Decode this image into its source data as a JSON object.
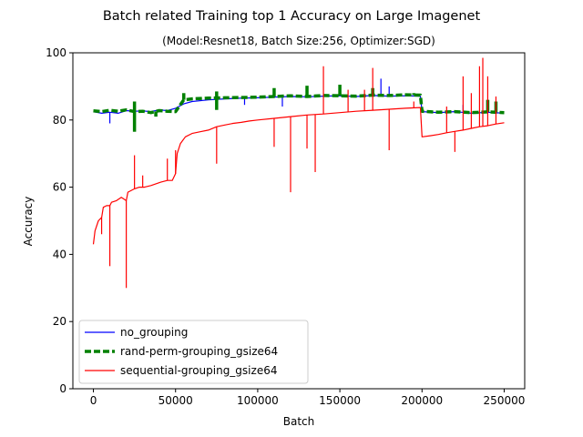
{
  "chart_data": {
    "type": "line",
    "title": "Batch related Training top 1 Accuracy on Large Imagenet",
    "subtitle": "(Model:Resnet18, Batch Size:256, Optimizer:SGD)",
    "xlabel": "Batch",
    "ylabel": "Accuracy",
    "xlim": [
      -12500,
      262500
    ],
    "ylim": [
      0,
      100
    ],
    "xticks": [
      0,
      50000,
      100000,
      150000,
      200000,
      250000
    ],
    "xtick_labels": [
      "0",
      "50000",
      "100000",
      "150000",
      "200000",
      "250000"
    ],
    "yticks": [
      0,
      20,
      40,
      60,
      80,
      100
    ],
    "ytick_labels": [
      "0",
      "20",
      "40",
      "60",
      "80",
      "100"
    ],
    "grid": false,
    "legend_position": "lower-left",
    "series": [
      {
        "name": "no_grouping",
        "color": "#0000ff",
        "style": "solid-thin",
        "x": [
          0,
          5000,
          10000,
          15000,
          20000,
          25000,
          30000,
          35000,
          40000,
          45000,
          50000,
          55000,
          60000,
          70000,
          80000,
          90000,
          100000,
          110000,
          120000,
          130000,
          140000,
          150000,
          160000,
          170000,
          180000,
          190000,
          199000,
          200000,
          210000,
          220000,
          230000,
          240000,
          250000
        ],
        "values": [
          82.5,
          82.0,
          82.3,
          82.0,
          82.8,
          82.6,
          82.7,
          82.5,
          83.0,
          82.8,
          83.5,
          84.8,
          85.5,
          86.0,
          86.3,
          86.5,
          86.6,
          86.8,
          87.0,
          86.9,
          87.1,
          87.2,
          87.0,
          87.3,
          87.1,
          87.2,
          87.1,
          82.5,
          82.2,
          82.5,
          82.0,
          82.3,
          82.0
        ],
        "spikes": [
          {
            "x": 10000,
            "values": [
              79.0
            ]
          },
          {
            "x": 92000,
            "values": [
              84.5
            ]
          },
          {
            "x": 115000,
            "values": [
              84.0
            ]
          },
          {
            "x": 175000,
            "values": [
              92.3
            ]
          },
          {
            "x": 180000,
            "values": [
              90.0
            ]
          },
          {
            "x": 225000,
            "values": [
              84.5
            ]
          }
        ]
      },
      {
        "name": "rand-perm-grouping_gsize64",
        "color": "#008000",
        "style": "dashed-thick",
        "x": [
          0,
          5000,
          10000,
          15000,
          20000,
          25000,
          30000,
          35000,
          40000,
          45000,
          50000,
          55000,
          60000,
          70000,
          80000,
          90000,
          100000,
          110000,
          120000,
          130000,
          140000,
          150000,
          160000,
          170000,
          180000,
          190000,
          199000,
          200000,
          210000,
          220000,
          230000,
          240000,
          250000
        ],
        "values": [
          82.7,
          82.5,
          82.9,
          82.6,
          83.0,
          82.5,
          82.6,
          82.2,
          82.8,
          82.6,
          82.5,
          86.0,
          86.3,
          86.5,
          86.6,
          86.7,
          86.8,
          87.0,
          87.2,
          87.0,
          87.3,
          87.2,
          87.1,
          87.4,
          87.3,
          87.5,
          87.4,
          82.6,
          82.3,
          82.5,
          82.2,
          82.4,
          82.2
        ],
        "spikes": [
          {
            "x": 25000,
            "values": [
              76.5,
              85.5
            ]
          },
          {
            "x": 38000,
            "values": [
              81.0
            ]
          },
          {
            "x": 53000,
            "values": [
              84.5
            ]
          },
          {
            "x": 55000,
            "values": [
              88.0
            ]
          },
          {
            "x": 75000,
            "values": [
              83.0,
              88.5
            ]
          },
          {
            "x": 110000,
            "values": [
              89.5
            ]
          },
          {
            "x": 130000,
            "values": [
              90.2
            ]
          },
          {
            "x": 150000,
            "values": [
              90.5
            ]
          },
          {
            "x": 170000,
            "values": [
              89.5
            ]
          },
          {
            "x": 195000,
            "values": [
              88.0
            ]
          },
          {
            "x": 240000,
            "values": [
              86.0
            ]
          },
          {
            "x": 245000,
            "values": [
              85.5
            ]
          }
        ]
      },
      {
        "name": "sequential-grouping_gsize64",
        "color": "#ff0000",
        "style": "solid-thin",
        "x": [
          0,
          1000,
          3000,
          5000,
          6000,
          8000,
          10000,
          11000,
          14000,
          17000,
          20000,
          21000,
          25000,
          28000,
          31000,
          35000,
          38000,
          41000,
          45000,
          48000,
          50000,
          51000,
          53000,
          56000,
          60000,
          65000,
          70000,
          75000,
          80000,
          85000,
          90000,
          95000,
          100000,
          110000,
          120000,
          130000,
          140000,
          150000,
          160000,
          170000,
          180000,
          190000,
          199000,
          200000,
          205000,
          210000,
          215000,
          220000,
          225000,
          230000,
          235000,
          240000,
          245000,
          250000
        ],
        "values": [
          43.0,
          47.0,
          50.0,
          51.0,
          54.0,
          54.5,
          54.5,
          55.5,
          56.0,
          57.0,
          56.0,
          58.5,
          59.5,
          60.0,
          60.0,
          60.5,
          61.0,
          61.5,
          62.0,
          62.0,
          64.0,
          70.0,
          73.0,
          75.0,
          76.0,
          76.5,
          77.0,
          78.0,
          78.5,
          79.0,
          79.3,
          79.7,
          80.0,
          80.5,
          81.0,
          81.5,
          81.8,
          82.2,
          82.6,
          82.9,
          83.2,
          83.5,
          83.7,
          75.0,
          75.3,
          75.7,
          76.2,
          76.6,
          77.0,
          77.5,
          78.0,
          78.3,
          78.8,
          79.2
        ],
        "spikes": [
          {
            "x": 5000,
            "values": [
              46.0
            ]
          },
          {
            "x": 10000,
            "values": [
              36.5
            ]
          },
          {
            "x": 20000,
            "values": [
              30.0
            ]
          },
          {
            "x": 25000,
            "values": [
              69.5
            ]
          },
          {
            "x": 30000,
            "values": [
              63.5
            ]
          },
          {
            "x": 45000,
            "values": [
              68.5
            ]
          },
          {
            "x": 50000,
            "values": [
              71.0
            ]
          },
          {
            "x": 75000,
            "values": [
              67.0
            ]
          },
          {
            "x": 110000,
            "values": [
              72.0
            ]
          },
          {
            "x": 120000,
            "values": [
              58.5
            ]
          },
          {
            "x": 130000,
            "values": [
              71.5
            ]
          },
          {
            "x": 135000,
            "values": [
              64.5
            ]
          },
          {
            "x": 140000,
            "values": [
              96.0
            ]
          },
          {
            "x": 155000,
            "values": [
              89.0
            ]
          },
          {
            "x": 165000,
            "values": [
              89.0
            ]
          },
          {
            "x": 170000,
            "values": [
              95.5
            ]
          },
          {
            "x": 180000,
            "values": [
              71.0
            ]
          },
          {
            "x": 195000,
            "values": [
              85.5
            ]
          },
          {
            "x": 215000,
            "values": [
              84.0
            ]
          },
          {
            "x": 220000,
            "values": [
              70.5
            ]
          },
          {
            "x": 225000,
            "values": [
              93.0
            ]
          },
          {
            "x": 230000,
            "values": [
              88.0
            ]
          },
          {
            "x": 235000,
            "values": [
              96.0
            ]
          },
          {
            "x": 237000,
            "values": [
              98.5
            ]
          },
          {
            "x": 240000,
            "values": [
              93.0
            ]
          },
          {
            "x": 245000,
            "values": [
              87.0
            ]
          }
        ]
      }
    ]
  }
}
